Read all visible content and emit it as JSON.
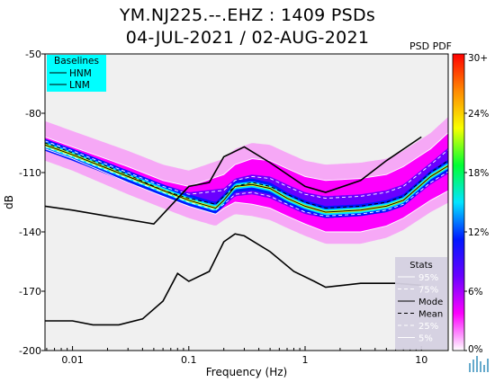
{
  "title_line1": "YM.NJ225.--.EHZ : 1409 PSDs",
  "title_line2": "04-JUL-2021 / 02-AUG-2021",
  "pdf_label": "PSD PDF",
  "chart_data": {
    "type": "heatmap",
    "xscale": "log",
    "xlim": [
      0.0058,
      17
    ],
    "ylim": [
      -200,
      -50
    ],
    "xlabel": "Frequency (Hz)",
    "ylabel": "dB",
    "xticks": [
      {
        "v": 0.01,
        "label": "0.01"
      },
      {
        "v": 0.1,
        "label": "0.1"
      },
      {
        "v": 1,
        "label": "1"
      },
      {
        "v": 10,
        "label": "10"
      }
    ],
    "yticks": [
      {
        "v": -50,
        "label": "-50"
      },
      {
        "v": -80,
        "label": "-80"
      },
      {
        "v": -110,
        "label": "-110"
      },
      {
        "v": -140,
        "label": "-140"
      },
      {
        "v": -170,
        "label": "-170"
      },
      {
        "v": -200,
        "label": "-200"
      }
    ],
    "baselines": {
      "title": "Baselines",
      "items": [
        {
          "name": "HNM"
        },
        {
          "name": "LNM"
        }
      ],
      "hnm": [
        [
          0.0058,
          -127
        ],
        [
          0.01,
          -129
        ],
        [
          0.05,
          -136
        ],
        [
          0.1,
          -117
        ],
        [
          0.15,
          -115
        ],
        [
          0.2,
          -102
        ],
        [
          0.3,
          -97
        ],
        [
          0.5,
          -105
        ],
        [
          1,
          -117
        ],
        [
          1.5,
          -120
        ],
        [
          3,
          -114
        ],
        [
          5,
          -104
        ],
        [
          10,
          -92
        ]
      ],
      "lnm": [
        [
          0.0058,
          -185
        ],
        [
          0.01,
          -185
        ],
        [
          0.015,
          -187
        ],
        [
          0.025,
          -187
        ],
        [
          0.04,
          -184
        ],
        [
          0.06,
          -175
        ],
        [
          0.08,
          -161
        ],
        [
          0.1,
          -165
        ],
        [
          0.15,
          -160
        ],
        [
          0.2,
          -145
        ],
        [
          0.25,
          -141
        ],
        [
          0.3,
          -142
        ],
        [
          0.5,
          -150
        ],
        [
          0.8,
          -160
        ],
        [
          1.2,
          -165
        ],
        [
          1.5,
          -168
        ],
        [
          3,
          -166
        ],
        [
          6,
          -166
        ],
        [
          10,
          -167
        ]
      ]
    },
    "stats": {
      "title": "Stats",
      "items": [
        {
          "name": "95%"
        },
        {
          "name": "75%"
        },
        {
          "name": "Mode"
        },
        {
          "name": "Mean"
        },
        {
          "name": "25%"
        },
        {
          "name": "5%"
        }
      ],
      "mode": [
        [
          0.0058,
          -96
        ],
        [
          0.01,
          -101
        ],
        [
          0.03,
          -112
        ],
        [
          0.06,
          -119
        ],
        [
          0.1,
          -124
        ],
        [
          0.17,
          -128
        ],
        [
          0.2,
          -124
        ],
        [
          0.25,
          -117
        ],
        [
          0.35,
          -116
        ],
        [
          0.5,
          -118
        ],
        [
          0.7,
          -123
        ],
        [
          1,
          -127
        ],
        [
          1.5,
          -130
        ],
        [
          3,
          -129
        ],
        [
          5,
          -127
        ],
        [
          7,
          -124
        ],
        [
          12,
          -112
        ],
        [
          20,
          -104
        ],
        [
          25,
          -99
        ],
        [
          30,
          -104
        ],
        [
          35,
          -107
        ],
        [
          45,
          -99
        ],
        [
          55,
          -102
        ]
      ],
      "mean": [
        [
          0.0058,
          -95
        ],
        [
          0.01,
          -100
        ],
        [
          0.03,
          -111
        ],
        [
          0.06,
          -119
        ],
        [
          0.1,
          -123
        ],
        [
          0.17,
          -126
        ],
        [
          0.2,
          -122
        ],
        [
          0.25,
          -117
        ],
        [
          0.35,
          -115
        ],
        [
          0.5,
          -117
        ],
        [
          0.7,
          -121
        ],
        [
          1,
          -125
        ],
        [
          1.5,
          -128
        ],
        [
          3,
          -127
        ],
        [
          5,
          -125
        ],
        [
          7,
          -122
        ],
        [
          12,
          -110
        ],
        [
          20,
          -101
        ],
        [
          25,
          -98
        ],
        [
          30,
          -100
        ],
        [
          35,
          -104
        ],
        [
          45,
          -98
        ],
        [
          55,
          -104
        ]
      ],
      "p95": [
        [
          0.0058,
          -92
        ],
        [
          0.01,
          -97
        ],
        [
          0.03,
          -107
        ],
        [
          0.06,
          -114
        ],
        [
          0.1,
          -117
        ],
        [
          0.2,
          -111
        ],
        [
          0.25,
          -106
        ],
        [
          0.35,
          -103
        ],
        [
          0.5,
          -104
        ],
        [
          0.7,
          -108
        ],
        [
          1,
          -112
        ],
        [
          1.5,
          -114
        ],
        [
          3,
          -113
        ],
        [
          5,
          -111
        ],
        [
          7,
          -107
        ],
        [
          12,
          -98
        ],
        [
          20,
          -86
        ],
        [
          25,
          -84
        ],
        [
          35,
          -87
        ],
        [
          45,
          -92
        ],
        [
          55,
          -88
        ]
      ],
      "p75": [
        [
          0.0058,
          -94
        ],
        [
          0.01,
          -99
        ],
        [
          0.03,
          -110
        ],
        [
          0.06,
          -117
        ],
        [
          0.1,
          -121
        ],
        [
          0.2,
          -119
        ],
        [
          0.25,
          -114
        ],
        [
          0.35,
          -112
        ],
        [
          0.5,
          -113
        ],
        [
          0.7,
          -117
        ],
        [
          1,
          -121
        ],
        [
          1.5,
          -123
        ],
        [
          3,
          -122
        ],
        [
          5,
          -120
        ],
        [
          7,
          -117
        ],
        [
          12,
          -106
        ],
        [
          20,
          -95
        ],
        [
          25,
          -92
        ],
        [
          35,
          -95
        ],
        [
          45,
          -96
        ],
        [
          55,
          -95
        ]
      ],
      "p25": [
        [
          0.0058,
          -97
        ],
        [
          0.01,
          -102
        ],
        [
          0.03,
          -113
        ],
        [
          0.06,
          -120
        ],
        [
          0.1,
          -125
        ],
        [
          0.17,
          -129
        ],
        [
          0.2,
          -126
        ],
        [
          0.25,
          -121
        ],
        [
          0.35,
          -120
        ],
        [
          0.5,
          -122
        ],
        [
          0.7,
          -126
        ],
        [
          1,
          -130
        ],
        [
          1.5,
          -132
        ],
        [
          3,
          -131
        ],
        [
          5,
          -129
        ],
        [
          7,
          -126
        ],
        [
          12,
          -115
        ],
        [
          20,
          -107
        ],
        [
          25,
          -104
        ],
        [
          35,
          -108
        ],
        [
          45,
          -107
        ],
        [
          55,
          -110
        ]
      ],
      "p5": [
        [
          0.0058,
          -98
        ],
        [
          0.01,
          -103
        ],
        [
          0.03,
          -115
        ],
        [
          0.06,
          -122
        ],
        [
          0.1,
          -127
        ],
        [
          0.17,
          -131
        ],
        [
          0.2,
          -128
        ],
        [
          0.25,
          -125
        ],
        [
          0.35,
          -126
        ],
        [
          0.5,
          -128
        ],
        [
          0.7,
          -132
        ],
        [
          1,
          -136
        ],
        [
          1.5,
          -140
        ],
        [
          3,
          -140
        ],
        [
          5,
          -137
        ],
        [
          7,
          -133
        ],
        [
          12,
          -124
        ],
        [
          20,
          -117
        ],
        [
          25,
          -115
        ],
        [
          35,
          -119
        ],
        [
          45,
          -122
        ],
        [
          55,
          -130
        ]
      ]
    },
    "colorbar": {
      "ticks": [
        {
          "v": 0,
          "label": "0%"
        },
        {
          "v": 6,
          "label": "6%"
        },
        {
          "v": 12,
          "label": "12%"
        },
        {
          "v": 18,
          "label": "18%"
        },
        {
          "v": 24,
          "label": "24%"
        },
        {
          "v": 30,
          "label": "30+"
        }
      ],
      "range": [
        0,
        30
      ],
      "colors": [
        "#ffffff",
        "#fd00fd",
        "#6a00ff",
        "#0018ff",
        "#00e5ff",
        "#00ff33",
        "#f8ff00",
        "#ff8a00",
        "#ff0000"
      ]
    }
  }
}
